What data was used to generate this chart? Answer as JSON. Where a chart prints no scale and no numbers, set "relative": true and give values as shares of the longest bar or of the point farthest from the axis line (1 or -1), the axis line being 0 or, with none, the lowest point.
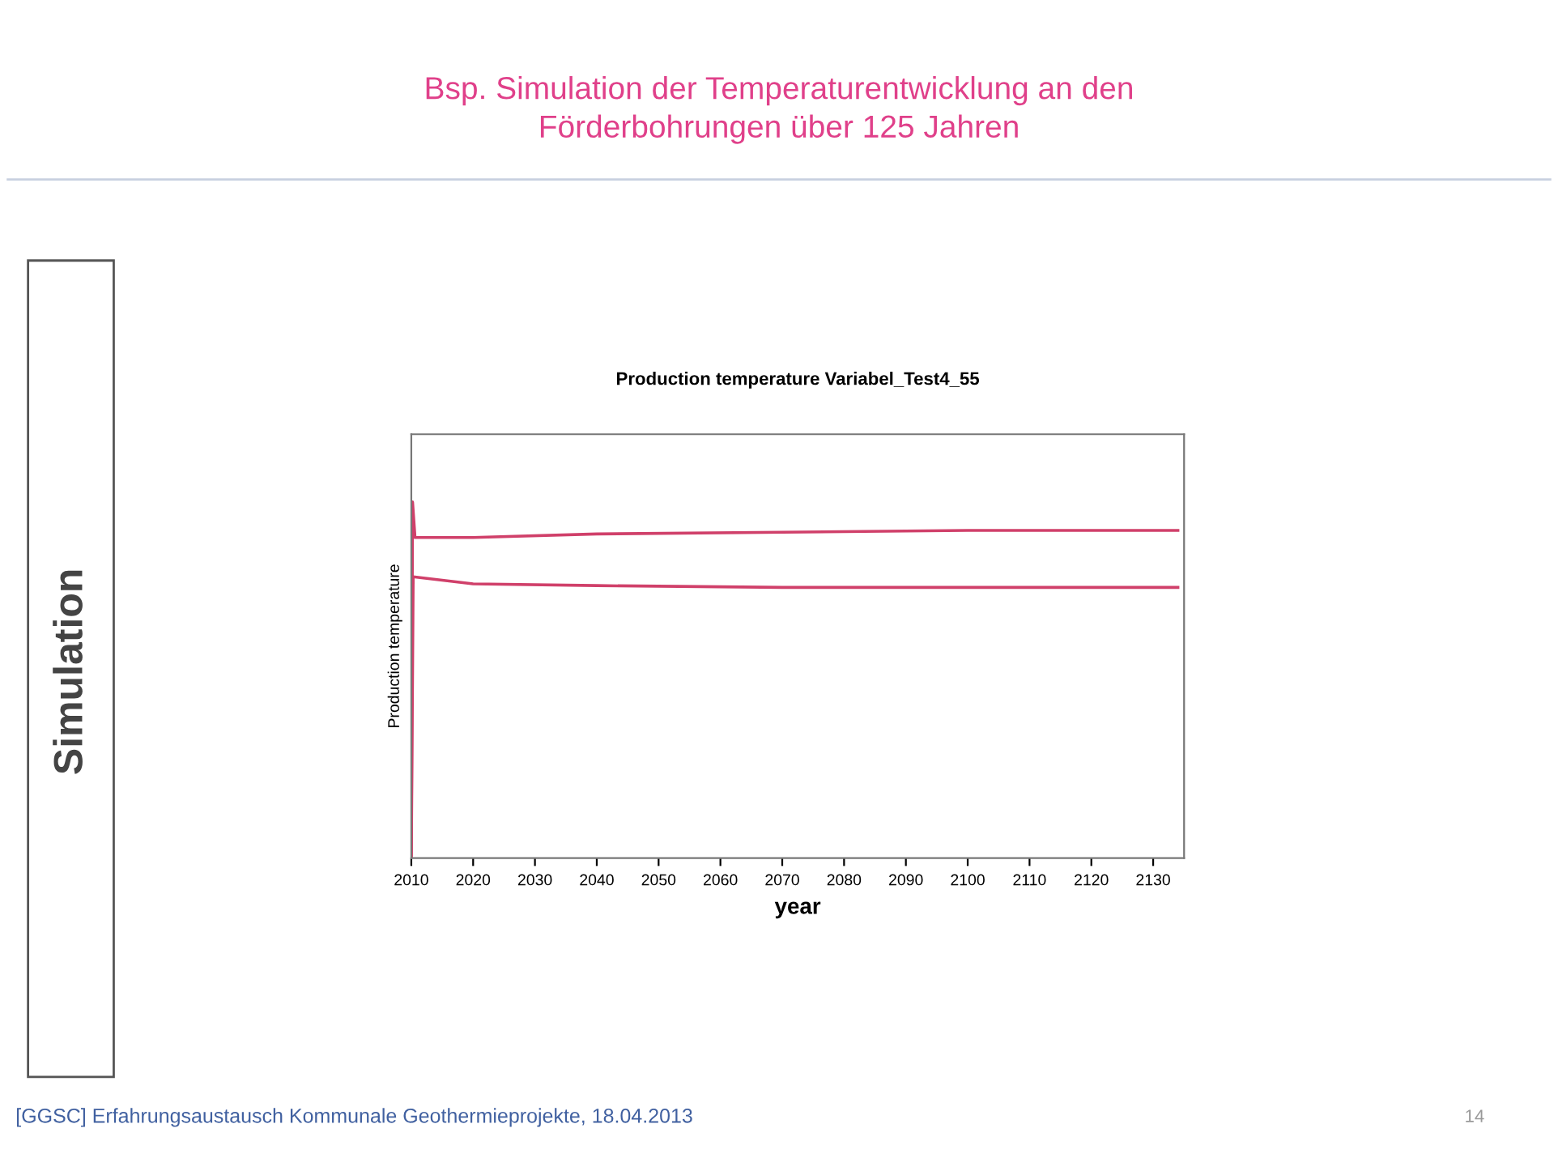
{
  "chart_data": {
    "type": "line",
    "title": "Bsp. Simulation der Temperaturentwicklung an den\nFörderbohrungen über 125 Jahren",
    "subtitle": "Production temperature Variabel_Test4_55",
    "xlabel": "year",
    "ylabel": "Production temperature",
    "annotations": [
      "Simulation",
      "[GGSC] Erfahrungsaustausch Kommunale Geothermieprojekte, 18.04.2013",
      "14"
    ],
    "relative": true,
    "tick_labels": "x",
    "grid": false,
    "legend": false,
    "marker": "none",
    "line_style": "solid",
    "xlim": [
      2010,
      2135
    ],
    "xticks": [
      2010,
      2020,
      2030,
      2040,
      2050,
      2060,
      2070,
      2080,
      2090,
      2100,
      2110,
      2120,
      2130
    ],
    "series": [
      {
        "color": "#d0406a",
        "x": [
          2010,
          2010.2,
          2010.6,
          2020,
          2040,
          2070,
          2100,
          2134
        ],
        "values": [
          0,
          1,
          0.9,
          0.9,
          0.91,
          0.915,
          0.92,
          0.92
        ]
      },
      {
        "color": "#d0406a",
        "x": [
          2010,
          2010.3,
          2015,
          2020,
          2040,
          2070,
          2100,
          2134
        ],
        "values": [
          0,
          0.79,
          0.78,
          0.77,
          0.765,
          0.76,
          0.76,
          0.76
        ]
      }
    ]
  }
}
